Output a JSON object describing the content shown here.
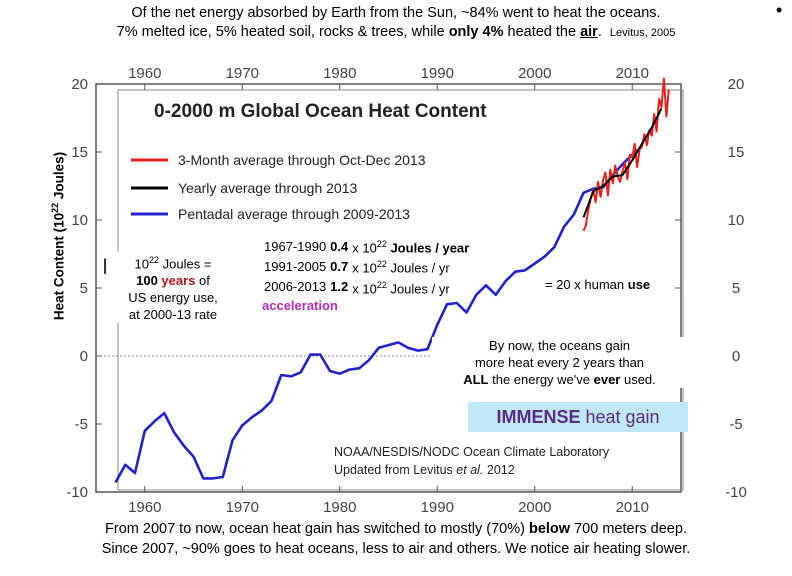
{
  "top_caption": {
    "line1": "Of the net energy absorbed by Earth from the Sun, ~84% went to heat the oceans.",
    "line2_a": "7% melted ice, 5% heated soil, rocks & trees, while ",
    "line2_bold": "only 4%",
    "line2_b": " heated the ",
    "line2_air": "air",
    "line2_c": ".",
    "citation": "Levitus, 2005"
  },
  "bullet": "•",
  "chart_data": {
    "type": "line",
    "title": "0-2000 m Global Ocean Heat Content",
    "ylabel": "Heat Content (10²² Joules)",
    "xlabel": "",
    "xlim": [
      1955,
      2015
    ],
    "ylim": [
      -10,
      20
    ],
    "x_ticks": [
      "1960",
      "1970",
      "1980",
      "1990",
      "2000",
      "2010"
    ],
    "y_ticks": [
      "20",
      "15",
      "10",
      "5",
      "0",
      "-5",
      "-10"
    ],
    "legend": [
      {
        "name": "3-Month average through Oct-Dec 2013",
        "color": "#e8201c"
      },
      {
        "name": "Yearly average through 2013",
        "color": "#000000"
      },
      {
        "name": "Pentadal average through 2009-2013",
        "color": "#2222cc"
      }
    ],
    "series": [
      {
        "name": "Pentadal average through 2009-2013",
        "color": "#2222cc",
        "x": [
          1957,
          1958,
          1959,
          1960,
          1961,
          1962,
          1963,
          1964,
          1965,
          1966,
          1967,
          1968,
          1969,
          1970,
          1971,
          1972,
          1973,
          1974,
          1975,
          1976,
          1977,
          1978,
          1979,
          1980,
          1981,
          1982,
          1983,
          1984,
          1985,
          1986,
          1987,
          1988,
          1989,
          1990,
          1991,
          1992,
          1993,
          1994,
          1995,
          1996,
          1997,
          1998,
          1999,
          2000,
          2001,
          2002,
          2003,
          2004,
          2005,
          2006,
          2007,
          2008,
          2009,
          2010,
          2011
        ],
        "values": [
          -9.3,
          -8.0,
          -8.6,
          -5.5,
          -4.8,
          -4.2,
          -5.6,
          -6.6,
          -7.4,
          -9.0,
          -9.0,
          -8.9,
          -6.2,
          -5.1,
          -4.5,
          -4.0,
          -3.3,
          -1.4,
          -1.5,
          -1.2,
          0.1,
          0.1,
          -1.1,
          -1.3,
          -1.0,
          -0.9,
          -0.3,
          0.6,
          0.8,
          1.0,
          0.6,
          0.4,
          0.5,
          2.3,
          3.8,
          3.9,
          3.2,
          4.5,
          5.2,
          4.5,
          5.5,
          6.2,
          6.3,
          6.8,
          7.3,
          8.0,
          9.5,
          10.4,
          12.0,
          12.3,
          12.4,
          13.3,
          14.1,
          14.8,
          15.4
        ]
      },
      {
        "name": "Yearly average through 2013",
        "color": "#000000",
        "x": [
          2005,
          2006,
          2007,
          2008,
          2009,
          2010,
          2011,
          2012,
          2013
        ],
        "values": [
          10.2,
          12.1,
          12.5,
          13.2,
          13.3,
          14.4,
          15.6,
          16.8,
          18.2
        ]
      },
      {
        "name": "3-Month average through Oct-Dec 2013",
        "color": "#e8201c",
        "x": [
          2005.0,
          2005.25,
          2005.5,
          2005.75,
          2006.0,
          2006.25,
          2006.5,
          2006.75,
          2007.0,
          2007.25,
          2007.5,
          2007.75,
          2008.0,
          2008.25,
          2008.5,
          2008.75,
          2009.0,
          2009.25,
          2009.5,
          2009.75,
          2010.0,
          2010.25,
          2010.5,
          2010.75,
          2011.0,
          2011.25,
          2011.5,
          2011.75,
          2012.0,
          2012.25,
          2012.5,
          2012.75,
          2013.0,
          2013.25,
          2013.5,
          2013.75
        ],
        "values": [
          9.2,
          9.6,
          10.8,
          11.6,
          12.2,
          11.3,
          12.8,
          11.7,
          12.9,
          13.5,
          11.8,
          13.7,
          12.7,
          14.0,
          13.2,
          12.8,
          13.6,
          14.2,
          13.0,
          14.8,
          14.6,
          15.6,
          13.9,
          15.2,
          15.4,
          16.3,
          15.5,
          16.6,
          16.2,
          17.8,
          16.5,
          18.9,
          18.3,
          20.4,
          17.6,
          19.6
        ]
      }
    ],
    "credit_line1": "NOAA/NESDIS/NODC Ocean Climate Laboratory",
    "credit_line2_a": "Updated from Levitus ",
    "credit_line2_italic": "et al.",
    "credit_line2_b": " 2012"
  },
  "annotations": {
    "hidden_mark": "I",
    "energy_box": {
      "line1_base": "10",
      "line1_exp": "22",
      "line1_rest": " Joules =",
      "line2_num": "100 ",
      "line2_years": "years",
      "line2_rest": " of",
      "line3": "US energy use,",
      "line4": "at 2000-13 rate"
    },
    "rates": [
      {
        "period": "1967-1990",
        "value": "0.4",
        "unit_a": "x 10",
        "unit_exp": "22",
        "unit_b": " Joules / year"
      },
      {
        "period": "1991-2005",
        "value": "0.7",
        "unit_a": "x 10",
        "unit_exp": "22",
        "unit_b": " Joules / yr"
      },
      {
        "period": "2006-2013",
        "value": "1.2",
        "unit_a": "x 10",
        "unit_exp": "22",
        "unit_b": " Joules / yr"
      }
    ],
    "acceleration": "acceleration",
    "human_use_a": "= 20 x human ",
    "human_use_b": "use",
    "oceans_gain_line1": "By now, the oceans gain",
    "oceans_gain_line2": "more heat every 2 years than",
    "oceans_gain_line3_a": "ALL",
    "oceans_gain_line3_b": " the energy we've ",
    "oceans_gain_line3_c": "ever",
    "oceans_gain_line3_d": " used.",
    "immense_big": "IMMENSE",
    "immense_rest": " heat gain"
  },
  "bottom_caption": {
    "line1_a": "From 2007 to now, ocean heat gain has switched to mostly (70%) ",
    "line1_bold": "below",
    "line1_b": " 700 meters deep.",
    "line2": "Since 2007, ~90% goes to heat oceans, less to air and others.  We notice air heating slower."
  },
  "ylabel_parts": {
    "a": "Heat Content (10",
    "exp": "22",
    "b": " Joules)"
  }
}
